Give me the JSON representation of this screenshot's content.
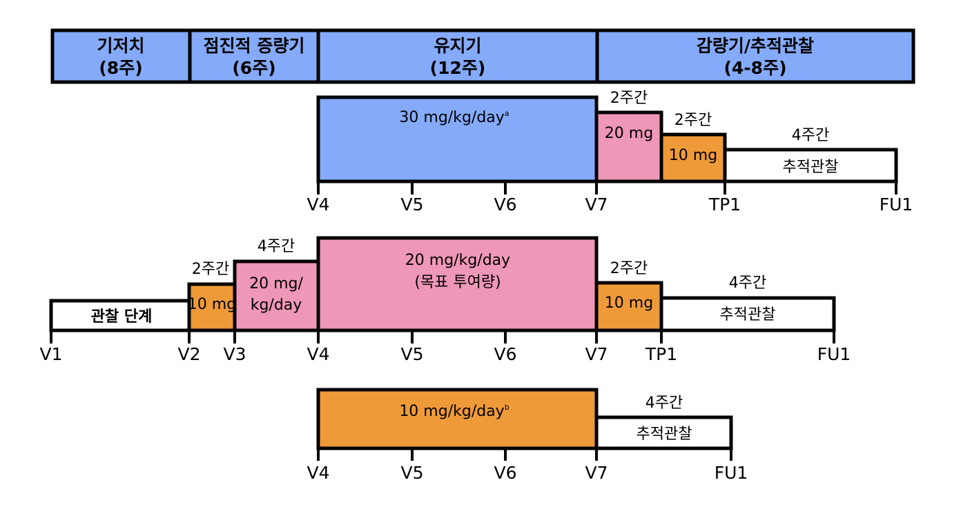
{
  "colors": {
    "blue": "#85aaf9",
    "pink": "#ef97b8",
    "orange": "#ef9a38",
    "white": "#ffffff",
    "border": "#000000"
  },
  "phases": [
    {
      "name": "기저치",
      "duration": "(8주)"
    },
    {
      "name": "점진적 증량기",
      "duration": "(6주)"
    },
    {
      "name": "유지기",
      "duration": "(12주)"
    },
    {
      "name": "감량기/추적관찰",
      "duration": "(4-8주)"
    }
  ],
  "arm1": {
    "main_dose": "30 mg/kg/day",
    "main_sup": "a",
    "taper1_period": "2주간",
    "taper1_dose": "20 mg",
    "taper2_period": "2주간",
    "taper2_dose": "10 mg",
    "followup_period": "4주간",
    "followup_label": "추적관찰",
    "visits": [
      "V4",
      "V5",
      "V6",
      "V7",
      "TP1",
      "FU1"
    ]
  },
  "arm2": {
    "observation_label": "관찰 단계",
    "step1_period": "2주간",
    "step1_dose": "10 mg",
    "step2_period": "4주간",
    "step2_dose_line1": "20 mg/",
    "step2_dose_line2": "kg/day",
    "main_dose_line1": "20 mg/kg/day",
    "main_dose_line2": "(목표 투여량)",
    "taper_period": "2주간",
    "taper_dose": "10 mg",
    "followup_period": "4주간",
    "followup_label": "추적관찰",
    "visits": [
      "V1",
      "V2",
      "V3",
      "V4",
      "V5",
      "V6",
      "V7",
      "TP1",
      "FU1"
    ]
  },
  "arm3": {
    "main_dose": "10 mg/kg/day",
    "main_sup": "b",
    "followup_period": "4주간",
    "followup_label": "추적관찰",
    "visits": [
      "V4",
      "V5",
      "V6",
      "V7",
      "FU1"
    ]
  }
}
